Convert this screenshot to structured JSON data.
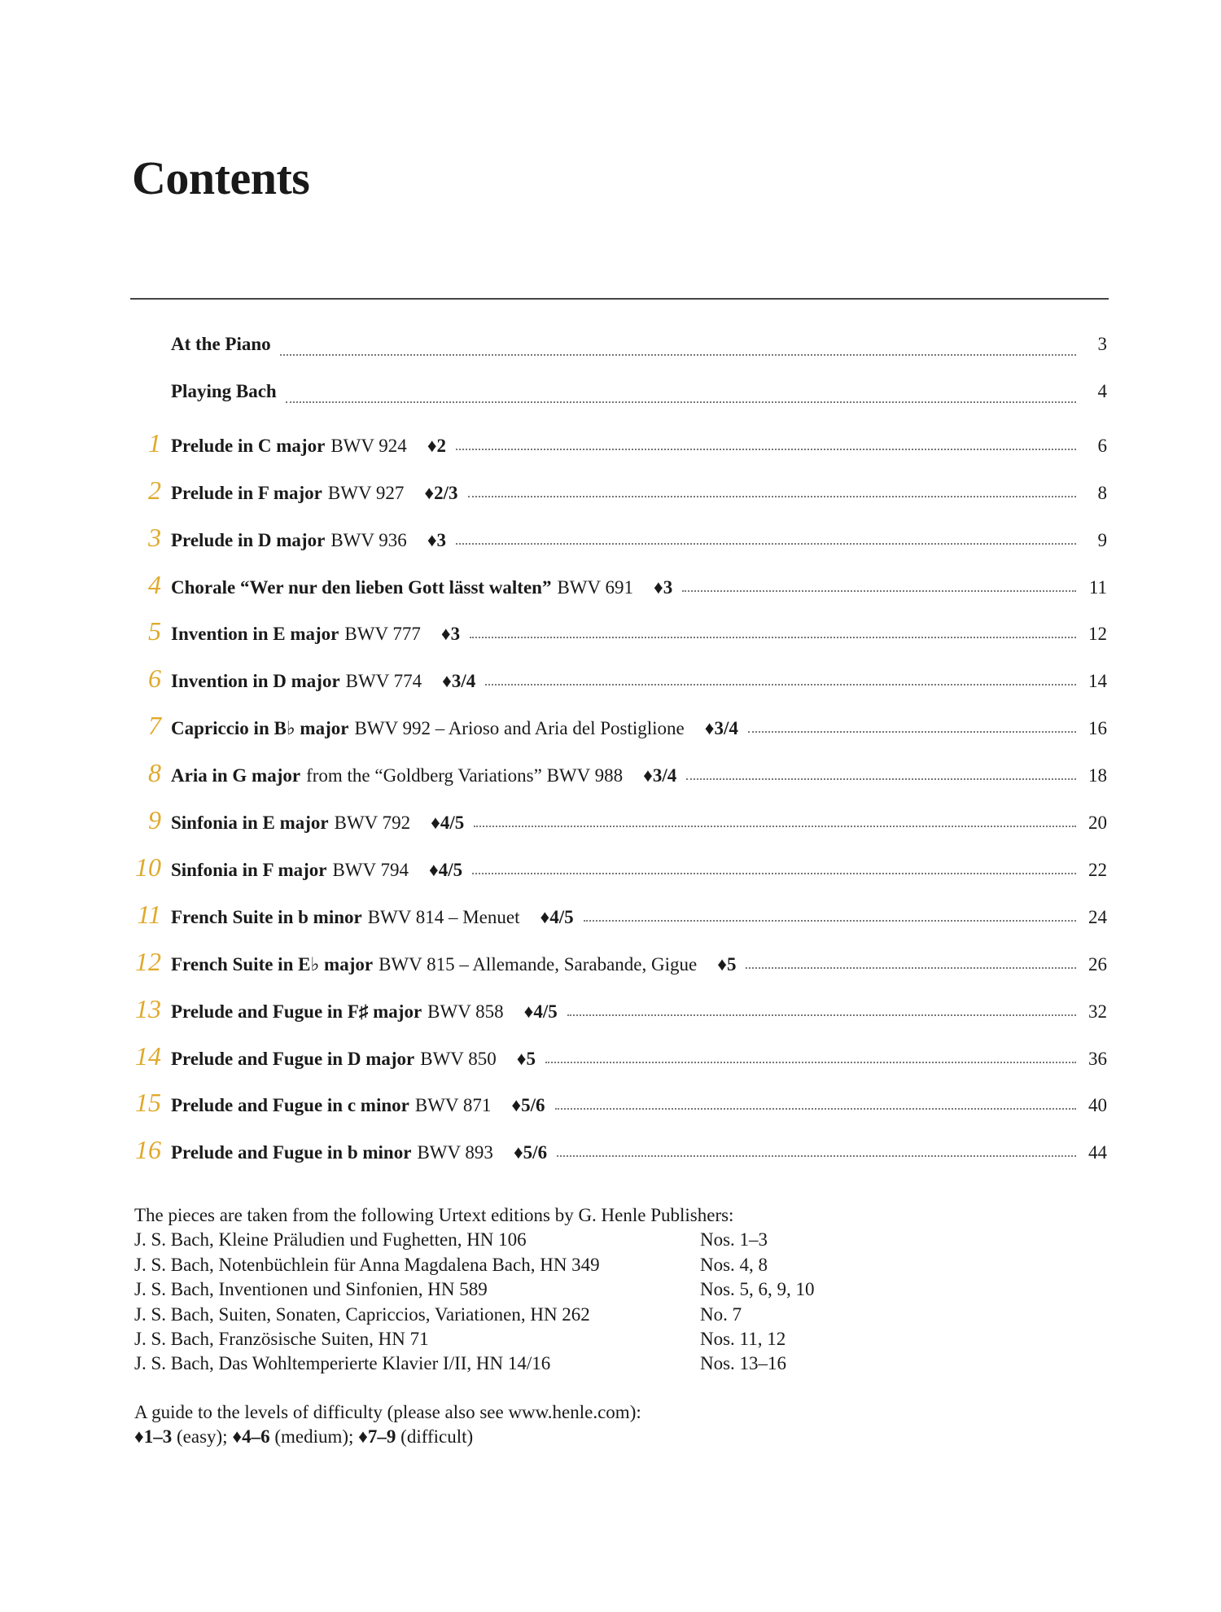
{
  "header": {
    "title": "Contents"
  },
  "entries": [
    {
      "number": null,
      "parts": [
        {
          "text": "At the Piano",
          "bold": true
        }
      ],
      "level": null,
      "page": 3
    },
    {
      "number": null,
      "parts": [
        {
          "text": "Playing Bach",
          "bold": true
        }
      ],
      "level": null,
      "page": 4
    },
    {
      "number": 1,
      "parts": [
        {
          "text": "Prelude in C major",
          "bold": true
        },
        {
          "text": "BWV 924",
          "bold": false
        }
      ],
      "level": "♦2",
      "page": 6
    },
    {
      "number": 2,
      "parts": [
        {
          "text": "Prelude in F major",
          "bold": true
        },
        {
          "text": "BWV 927",
          "bold": false
        }
      ],
      "level": "♦2/3",
      "page": 8
    },
    {
      "number": 3,
      "parts": [
        {
          "text": "Prelude in D major",
          "bold": true
        },
        {
          "text": "BWV 936",
          "bold": false
        }
      ],
      "level": "♦3",
      "page": 9
    },
    {
      "number": 4,
      "parts": [
        {
          "text": "Chorale “Wer nur den lieben Gott lässt walten”",
          "bold": true
        },
        {
          "text": "BWV 691",
          "bold": false
        }
      ],
      "level": "♦3",
      "page": 11
    },
    {
      "number": 5,
      "parts": [
        {
          "text": "Invention in E major",
          "bold": true
        },
        {
          "text": "BWV 777",
          "bold": false
        }
      ],
      "level": "♦3",
      "page": 12
    },
    {
      "number": 6,
      "parts": [
        {
          "text": "Invention in D major",
          "bold": true
        },
        {
          "text": "BWV 774",
          "bold": false
        }
      ],
      "level": "♦3/4",
      "page": 14
    },
    {
      "number": 7,
      "parts": [
        {
          "text": "Capriccio in B♭ major",
          "bold": true
        },
        {
          "text": "BWV 992 – Arioso and Aria del Postiglione",
          "bold": false
        }
      ],
      "level": "♦3/4",
      "page": 16
    },
    {
      "number": 8,
      "parts": [
        {
          "text": "Aria in G major",
          "bold": true
        },
        {
          "text": "from the “Goldberg Variations” BWV 988",
          "bold": false
        }
      ],
      "level": "♦3/4",
      "page": 18
    },
    {
      "number": 9,
      "parts": [
        {
          "text": "Sinfonia in E major",
          "bold": true
        },
        {
          "text": "BWV 792",
          "bold": false
        }
      ],
      "level": "♦4/5",
      "page": 20
    },
    {
      "number": 10,
      "parts": [
        {
          "text": "Sinfonia in F major",
          "bold": true
        },
        {
          "text": "BWV 794",
          "bold": false
        }
      ],
      "level": "♦4/5",
      "page": 22
    },
    {
      "number": 11,
      "parts": [
        {
          "text": "French Suite in b minor",
          "bold": true
        },
        {
          "text": "BWV 814 – Menuet",
          "bold": false
        }
      ],
      "level": "♦4/5",
      "page": 24
    },
    {
      "number": 12,
      "parts": [
        {
          "text": "French Suite in E♭ major",
          "bold": true
        },
        {
          "text": "BWV 815 – Allemande, Sarabande, Gigue",
          "bold": false
        }
      ],
      "level": "♦5",
      "page": 26
    },
    {
      "number": 13,
      "parts": [
        {
          "text": "Prelude and Fugue in F♯ major",
          "bold": true
        },
        {
          "text": "BWV 858",
          "bold": false
        }
      ],
      "level": "♦4/5",
      "page": 32
    },
    {
      "number": 14,
      "parts": [
        {
          "text": "Prelude and Fugue in D major",
          "bold": true
        },
        {
          "text": "BWV 850",
          "bold": false
        }
      ],
      "level": "♦5",
      "page": 36
    },
    {
      "number": 15,
      "parts": [
        {
          "text": "Prelude and Fugue in c minor",
          "bold": true
        },
        {
          "text": "BWV 871",
          "bold": false
        }
      ],
      "level": "♦5/6",
      "page": 40
    },
    {
      "number": 16,
      "parts": [
        {
          "text": "Prelude and Fugue in b minor",
          "bold": true
        },
        {
          "text": "BWV 893",
          "bold": false
        }
      ],
      "level": "♦5/6",
      "page": 44
    }
  ],
  "sources": {
    "intro": "The pieces are taken from the following Urtext editions by G. Henle Publishers:",
    "rows": [
      [
        "J. S. Bach, Kleine Präludien und Fughetten, HN 106",
        "Nos. 1–3"
      ],
      [
        "J. S. Bach, Notenbüchlein für Anna Magdalena Bach, HN 349",
        "Nos. 4, 8"
      ],
      [
        "J. S. Bach, Inventionen und Sinfonien, HN 589",
        "Nos. 5, 6, 9, 10"
      ],
      [
        "J. S. Bach, Suiten, Sonaten, Capriccios, Variationen, HN 262",
        "No. 7"
      ],
      [
        "J. S. Bach, Französische Suiten, HN 71",
        "Nos. 11, 12"
      ],
      [
        "J. S. Bach, Das Wohltemperierte Klavier I/II, HN 14/16",
        "Nos. 13–16"
      ]
    ]
  },
  "guide": {
    "intro": "A guide to the levels of difficulty (please also see www.henle.com):",
    "levels": [
      {
        "level": "♦1–3",
        "label": "(easy);"
      },
      {
        "level": "♦4–6",
        "label": "(medium);"
      },
      {
        "level": "♦7–9",
        "label": "(difficult)"
      }
    ]
  }
}
